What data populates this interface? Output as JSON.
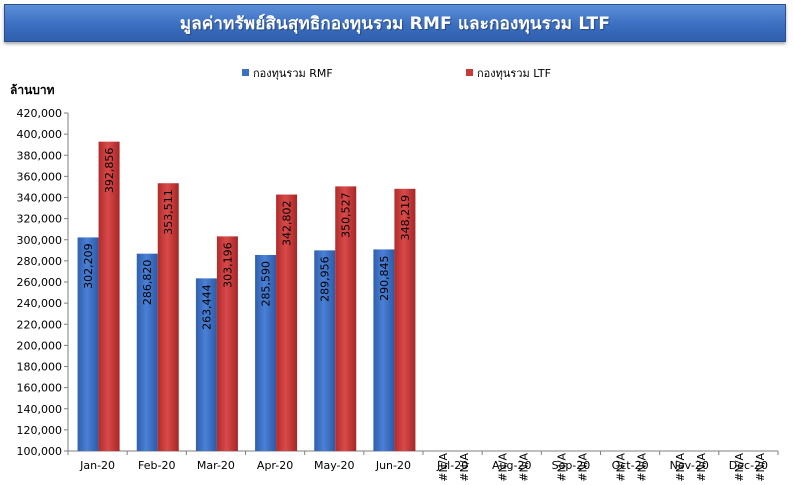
{
  "chart_data": {
    "type": "bar",
    "title": "มูลค่าทรัพย์สินสุทธิกองทุนรวม RMF  และกองทุนรวม LTF",
    "ylabel": "ล้านบาท",
    "xlabel": "",
    "ylim": [
      100000,
      420000
    ],
    "ytick_step": 20000,
    "grid": false,
    "legend_position": "top",
    "categories": [
      "Jan-20",
      "Feb-20",
      "Mar-20",
      "Apr-20",
      "May-20",
      "Jun-20",
      "Jul-20",
      "Aug-20",
      "Sep-20",
      "Oct-20",
      "Nov-20",
      "Dec-20"
    ],
    "series": [
      {
        "name": "กองทุนรวม RMF",
        "color": "#3a6fc4",
        "values": [
          302209,
          286820,
          263444,
          285590,
          289956,
          290845,
          null,
          null,
          null,
          null,
          null,
          null
        ],
        "labels": [
          "302,209",
          "286,820",
          "263,444",
          "285,590",
          "289,956",
          "290,845",
          "#N/A",
          "#N/A",
          "#N/A",
          "#N/A",
          "#N/A",
          "#N/A"
        ]
      },
      {
        "name": "กองทุนรวม LTF",
        "color": "#c83a3a",
        "values": [
          392856,
          353511,
          303196,
          342802,
          350527,
          348219,
          null,
          null,
          null,
          null,
          null,
          null
        ],
        "labels": [
          "392,856",
          "353,511",
          "303,196",
          "342,802",
          "350,527",
          "348,219",
          "#N/A",
          "#N/A",
          "#N/A",
          "#N/A",
          "#N/A",
          "#N/A"
        ]
      }
    ]
  }
}
